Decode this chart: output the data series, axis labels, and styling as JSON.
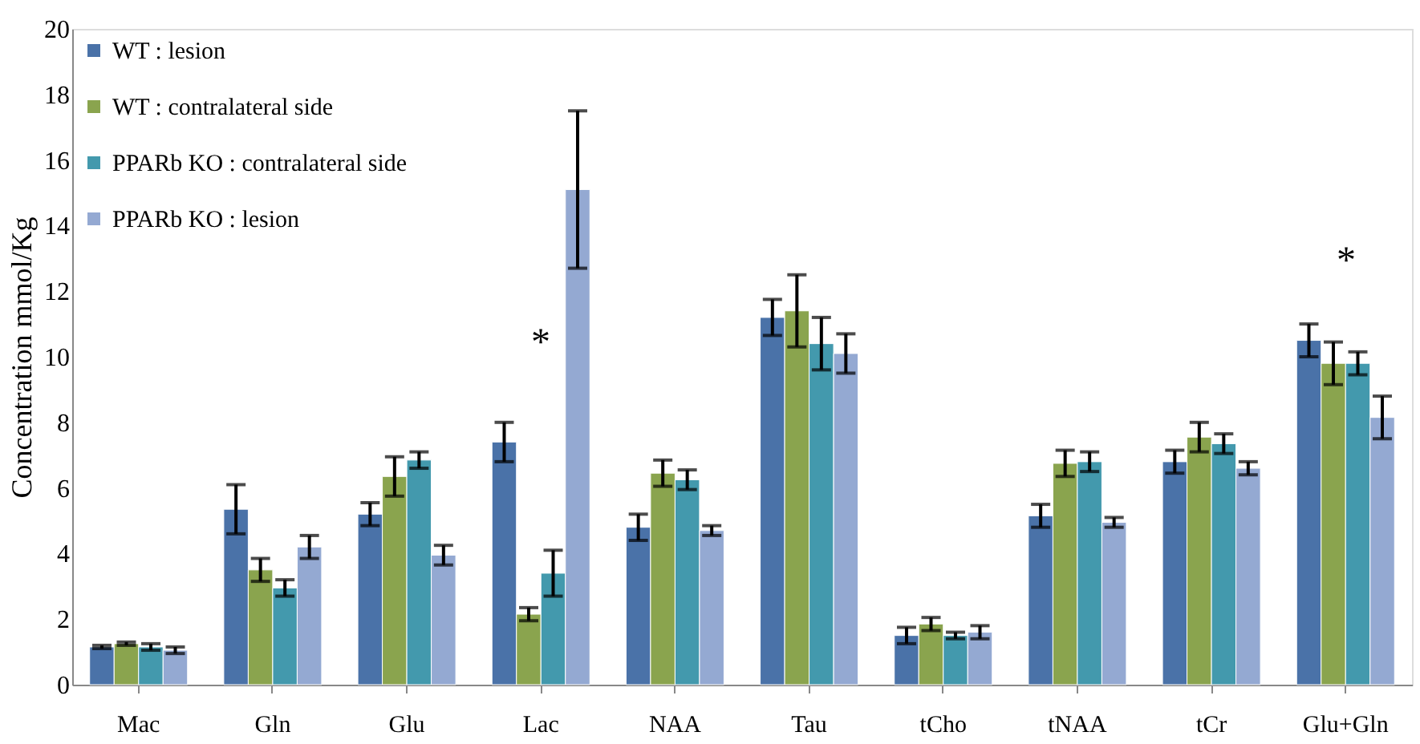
{
  "chart_data": {
    "type": "bar",
    "ylabel": "Concentration mmol/Kg",
    "categories": [
      "Mac",
      "Gln",
      "Glu",
      "Lac",
      "NAA",
      "Tau",
      "tCho",
      "tNAA",
      "tCr",
      "Glu+Gln"
    ],
    "series": [
      {
        "name": "WT : lesion",
        "color": "#4a72a8",
        "values": [
          1.15,
          5.35,
          5.2,
          7.4,
          4.8,
          11.2,
          1.5,
          5.15,
          6.8,
          10.5
        ],
        "errors": [
          0.05,
          0.75,
          0.35,
          0.6,
          0.4,
          0.55,
          0.25,
          0.35,
          0.35,
          0.5
        ]
      },
      {
        "name": "WT : contralateral side",
        "color": "#8aa44e",
        "values": [
          1.25,
          3.5,
          6.35,
          2.15,
          6.45,
          11.4,
          1.85,
          6.75,
          7.55,
          9.8
        ],
        "errors": [
          0.05,
          0.35,
          0.6,
          0.2,
          0.4,
          1.1,
          0.2,
          0.4,
          0.45,
          0.65
        ]
      },
      {
        "name": "PPARb KO : contralateral side",
        "color": "#4399ad",
        "values": [
          1.15,
          2.95,
          6.85,
          3.4,
          6.25,
          10.4,
          1.5,
          6.8,
          7.35,
          9.8
        ],
        "errors": [
          0.1,
          0.25,
          0.25,
          0.7,
          0.3,
          0.8,
          0.1,
          0.3,
          0.3,
          0.35
        ]
      },
      {
        "name": "PPARb KO : lesion",
        "color": "#94a9d2",
        "values": [
          1.05,
          4.2,
          3.95,
          15.1,
          4.7,
          10.1,
          1.6,
          4.95,
          6.6,
          8.15
        ],
        "errors": [
          0.1,
          0.35,
          0.3,
          2.4,
          0.15,
          0.6,
          0.2,
          0.15,
          0.2,
          0.65
        ]
      }
    ],
    "ylim": [
      0,
      20
    ],
    "yticks": [
      0,
      2,
      4,
      6,
      8,
      10,
      12,
      14,
      16,
      18,
      20
    ],
    "grid": false,
    "legend": "top left",
    "annotations": [
      "*",
      "*"
    ]
  }
}
